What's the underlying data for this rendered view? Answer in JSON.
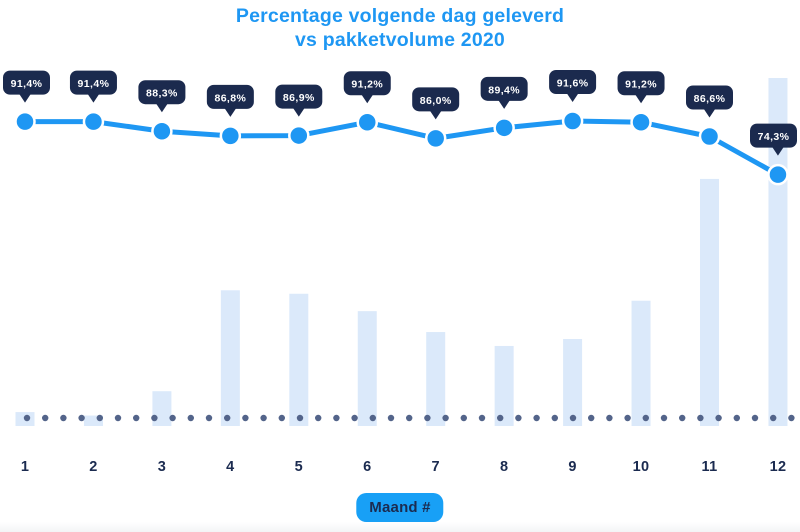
{
  "title": {
    "line1": "Percentage volgende dag geleverd",
    "line2": "vs pakketvolume 2020"
  },
  "xaxis_badge": "Maand #",
  "colors": {
    "accent_blue": "#1e97f3",
    "badge_blue": "#18a0f6",
    "navy": "#1b2b50",
    "callout_navy": "#1b2a4e",
    "bar_fill": "#dbe9fa",
    "baseline_dot": "#53648a",
    "callout_text": "#ffffff",
    "background": "#ffffff"
  },
  "chart_data": {
    "type": "combo",
    "title": "Percentage volgende dag geleverd vs pakketvolume 2020",
    "categories": [
      "1",
      "2",
      "3",
      "4",
      "5",
      "6",
      "7",
      "8",
      "9",
      "10",
      "11",
      "12"
    ],
    "xlabel": "Maand #",
    "ylabel": "",
    "grid": false,
    "legend_position": "none",
    "baseline_style": "dotted",
    "series": [
      {
        "name": "Percentage volgende dag geleverd",
        "type": "line",
        "unit": "%",
        "values": [
          91.4,
          91.4,
          88.3,
          86.8,
          86.9,
          91.2,
          86.0,
          89.4,
          91.6,
          91.2,
          86.6,
          74.3
        ],
        "point_labels": [
          "91,4%",
          "91,4%",
          "88,3%",
          "86,8%",
          "86,9%",
          "91,2%",
          "86,0%",
          "89,4%",
          "91,6%",
          "91,2%",
          "86,6%",
          "74,3%"
        ]
      },
      {
        "name": "Pakketvolume 2020",
        "type": "bar",
        "unit": "relative volume (geen y-as getoond, maand 12 = 100)",
        "values": [
          4,
          3,
          10,
          39,
          38,
          33,
          27,
          23,
          25,
          36,
          71,
          100
        ]
      }
    ]
  }
}
